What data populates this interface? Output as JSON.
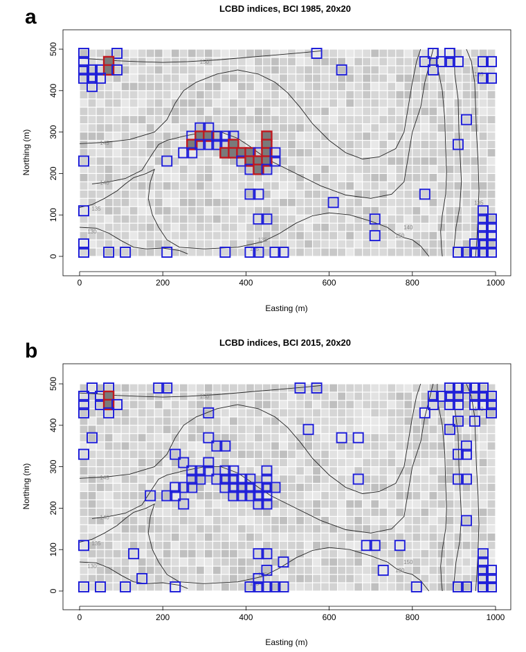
{
  "chart_data": [
    {
      "type": "heatmap",
      "panel_letter": "a",
      "title": "LCBD indices, BCI 1985, 20x20",
      "xlabel": "Easting (m)",
      "ylabel": "Northing (m)",
      "xlim": [
        0,
        1000
      ],
      "ylim": [
        0,
        500
      ],
      "x_ticks": [
        "0",
        "200",
        "400",
        "600",
        "800",
        "1000"
      ],
      "y_ticks": [
        "0",
        "100",
        "200",
        "300",
        "400",
        "500"
      ],
      "grid_cell_size_m": 20,
      "contour_labels": [
        "150",
        "145",
        "140",
        "135",
        "130",
        "135",
        "135",
        "150",
        "135",
        "140",
        "135"
      ],
      "marked_quadrats": [
        [
          10,
          490
        ],
        [
          90,
          490
        ],
        [
          570,
          490
        ],
        [
          850,
          490
        ],
        [
          890,
          490
        ],
        [
          10,
          470
        ],
        [
          70,
          470
        ],
        [
          830,
          470
        ],
        [
          870,
          470
        ],
        [
          890,
          470
        ],
        [
          910,
          470
        ],
        [
          970,
          470
        ],
        [
          990,
          470
        ],
        [
          10,
          450
        ],
        [
          30,
          450
        ],
        [
          50,
          450
        ],
        [
          70,
          450
        ],
        [
          90,
          450
        ],
        [
          630,
          450
        ],
        [
          850,
          450
        ],
        [
          10,
          430
        ],
        [
          30,
          430
        ],
        [
          50,
          430
        ],
        [
          970,
          430
        ],
        [
          990,
          430
        ],
        [
          30,
          410
        ],
        [
          930,
          330
        ],
        [
          290,
          310
        ],
        [
          310,
          310
        ],
        [
          270,
          290
        ],
        [
          290,
          290
        ],
        [
          310,
          290
        ],
        [
          330,
          290
        ],
        [
          350,
          290
        ],
        [
          370,
          290
        ],
        [
          450,
          290
        ],
        [
          270,
          270
        ],
        [
          290,
          270
        ],
        [
          310,
          270
        ],
        [
          330,
          270
        ],
        [
          350,
          270
        ],
        [
          370,
          270
        ],
        [
          450,
          270
        ],
        [
          910,
          270
        ],
        [
          250,
          250
        ],
        [
          270,
          250
        ],
        [
          350,
          250
        ],
        [
          370,
          250
        ],
        [
          390,
          250
        ],
        [
          410,
          250
        ],
        [
          430,
          250
        ],
        [
          450,
          250
        ],
        [
          470,
          250
        ],
        [
          10,
          230
        ],
        [
          210,
          230
        ],
        [
          390,
          230
        ],
        [
          410,
          230
        ],
        [
          430,
          230
        ],
        [
          450,
          230
        ],
        [
          470,
          230
        ],
        [
          410,
          210
        ],
        [
          430,
          210
        ],
        [
          450,
          210
        ],
        [
          410,
          150
        ],
        [
          430,
          150
        ],
        [
          830,
          150
        ],
        [
          610,
          130
        ],
        [
          10,
          110
        ],
        [
          970,
          110
        ],
        [
          430,
          90
        ],
        [
          450,
          90
        ],
        [
          710,
          90
        ],
        [
          970,
          90
        ],
        [
          990,
          90
        ],
        [
          970,
          70
        ],
        [
          990,
          70
        ],
        [
          710,
          50
        ],
        [
          970,
          50
        ],
        [
          990,
          50
        ],
        [
          10,
          30
        ],
        [
          950,
          30
        ],
        [
          970,
          30
        ],
        [
          990,
          30
        ],
        [
          10,
          10
        ],
        [
          70,
          10
        ],
        [
          110,
          10
        ],
        [
          210,
          10
        ],
        [
          350,
          10
        ],
        [
          410,
          10
        ],
        [
          430,
          10
        ],
        [
          470,
          10
        ],
        [
          490,
          10
        ],
        [
          910,
          10
        ],
        [
          930,
          10
        ],
        [
          950,
          10
        ],
        [
          970,
          10
        ],
        [
          990,
          10
        ]
      ],
      "significant_quadrats": [
        [
          70,
          470
        ],
        [
          70,
          450
        ],
        [
          290,
          290
        ],
        [
          310,
          290
        ],
        [
          450,
          290
        ],
        [
          270,
          270
        ],
        [
          370,
          270
        ],
        [
          450,
          270
        ],
        [
          350,
          250
        ],
        [
          370,
          250
        ],
        [
          390,
          250
        ],
        [
          410,
          250
        ],
        [
          450,
          250
        ],
        [
          410,
          230
        ],
        [
          430,
          230
        ],
        [
          450,
          230
        ],
        [
          430,
          210
        ]
      ]
    },
    {
      "type": "heatmap",
      "panel_letter": "b",
      "title": "LCBD indices, BCI 2015, 20x20",
      "xlabel": "Easting (m)",
      "ylabel": "Northing (m)",
      "xlim": [
        0,
        1000
      ],
      "ylim": [
        0,
        500
      ],
      "x_ticks": [
        "0",
        "200",
        "400",
        "600",
        "800",
        "1000"
      ],
      "y_ticks": [
        "0",
        "100",
        "200",
        "300",
        "400",
        "500"
      ],
      "grid_cell_size_m": 20,
      "contour_labels": [
        "150",
        "145",
        "140",
        "135",
        "130",
        "125",
        "135",
        "130",
        "140",
        "150"
      ],
      "marked_quadrats": [
        [
          30,
          490
        ],
        [
          70,
          490
        ],
        [
          190,
          490
        ],
        [
          210,
          490
        ],
        [
          530,
          490
        ],
        [
          570,
          490
        ],
        [
          890,
          490
        ],
        [
          910,
          490
        ],
        [
          930,
          490
        ],
        [
          950,
          490
        ],
        [
          970,
          490
        ],
        [
          10,
          470
        ],
        [
          50,
          470
        ],
        [
          70,
          470
        ],
        [
          850,
          470
        ],
        [
          870,
          470
        ],
        [
          890,
          470
        ],
        [
          910,
          470
        ],
        [
          950,
          470
        ],
        [
          970,
          470
        ],
        [
          990,
          470
        ],
        [
          10,
          450
        ],
        [
          50,
          450
        ],
        [
          70,
          450
        ],
        [
          90,
          450
        ],
        [
          850,
          450
        ],
        [
          890,
          450
        ],
        [
          910,
          450
        ],
        [
          950,
          450
        ],
        [
          970,
          450
        ],
        [
          990,
          450
        ],
        [
          10,
          430
        ],
        [
          70,
          430
        ],
        [
          310,
          430
        ],
        [
          830,
          430
        ],
        [
          990,
          430
        ],
        [
          910,
          410
        ],
        [
          950,
          410
        ],
        [
          550,
          390
        ],
        [
          890,
          390
        ],
        [
          30,
          370
        ],
        [
          310,
          370
        ],
        [
          630,
          370
        ],
        [
          670,
          370
        ],
        [
          330,
          350
        ],
        [
          350,
          350
        ],
        [
          930,
          350
        ],
        [
          10,
          330
        ],
        [
          230,
          330
        ],
        [
          910,
          330
        ],
        [
          930,
          330
        ],
        [
          250,
          310
        ],
        [
          310,
          310
        ],
        [
          270,
          290
        ],
        [
          290,
          290
        ],
        [
          310,
          290
        ],
        [
          350,
          290
        ],
        [
          370,
          290
        ],
        [
          450,
          290
        ],
        [
          270,
          270
        ],
        [
          290,
          270
        ],
        [
          330,
          270
        ],
        [
          350,
          270
        ],
        [
          370,
          270
        ],
        [
          390,
          270
        ],
        [
          410,
          270
        ],
        [
          450,
          270
        ],
        [
          670,
          270
        ],
        [
          910,
          270
        ],
        [
          930,
          270
        ],
        [
          230,
          250
        ],
        [
          250,
          250
        ],
        [
          270,
          250
        ],
        [
          350,
          250
        ],
        [
          370,
          250
        ],
        [
          390,
          250
        ],
        [
          410,
          250
        ],
        [
          430,
          250
        ],
        [
          450,
          250
        ],
        [
          470,
          250
        ],
        [
          170,
          230
        ],
        [
          210,
          230
        ],
        [
          230,
          230
        ],
        [
          370,
          230
        ],
        [
          390,
          230
        ],
        [
          410,
          230
        ],
        [
          430,
          230
        ],
        [
          450,
          230
        ],
        [
          250,
          210
        ],
        [
          430,
          210
        ],
        [
          450,
          210
        ],
        [
          930,
          170
        ],
        [
          10,
          110
        ],
        [
          690,
          110
        ],
        [
          710,
          110
        ],
        [
          770,
          110
        ],
        [
          130,
          90
        ],
        [
          430,
          90
        ],
        [
          450,
          90
        ],
        [
          970,
          90
        ],
        [
          490,
          70
        ],
        [
          970,
          70
        ],
        [
          450,
          50
        ],
        [
          730,
          50
        ],
        [
          970,
          50
        ],
        [
          990,
          50
        ],
        [
          150,
          30
        ],
        [
          430,
          30
        ],
        [
          970,
          30
        ],
        [
          990,
          30
        ],
        [
          10,
          10
        ],
        [
          50,
          10
        ],
        [
          110,
          10
        ],
        [
          230,
          10
        ],
        [
          410,
          10
        ],
        [
          430,
          10
        ],
        [
          450,
          10
        ],
        [
          470,
          10
        ],
        [
          490,
          10
        ],
        [
          810,
          10
        ],
        [
          910,
          10
        ],
        [
          930,
          10
        ],
        [
          970,
          10
        ],
        [
          990,
          10
        ]
      ],
      "significant_quadrats": [
        [
          70,
          470
        ],
        [
          70,
          450
        ]
      ]
    }
  ]
}
